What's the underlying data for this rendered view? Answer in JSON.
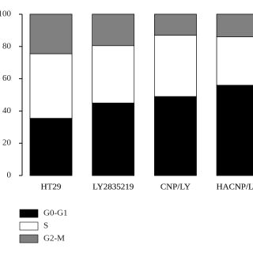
{
  "chart_data": {
    "type": "stacked_bar",
    "categories": [
      "HT29",
      "LY2835219",
      "CNP/LY",
      "HACNP/LY"
    ],
    "series": [
      {
        "name": "G0-G1",
        "color": "#000000",
        "values": [
          35.5,
          45,
          49,
          56
        ]
      },
      {
        "name": "S",
        "color": "#ffffff",
        "values": [
          40,
          35.5,
          38,
          30
        ]
      },
      {
        "name": "G2-M",
        "color": "#808080",
        "values": [
          24.5,
          19.5,
          13,
          14
        ]
      }
    ],
    "ylim": [
      0,
      100
    ],
    "yticks": [
      0,
      20,
      40,
      60,
      80,
      100
    ],
    "grid": false
  }
}
